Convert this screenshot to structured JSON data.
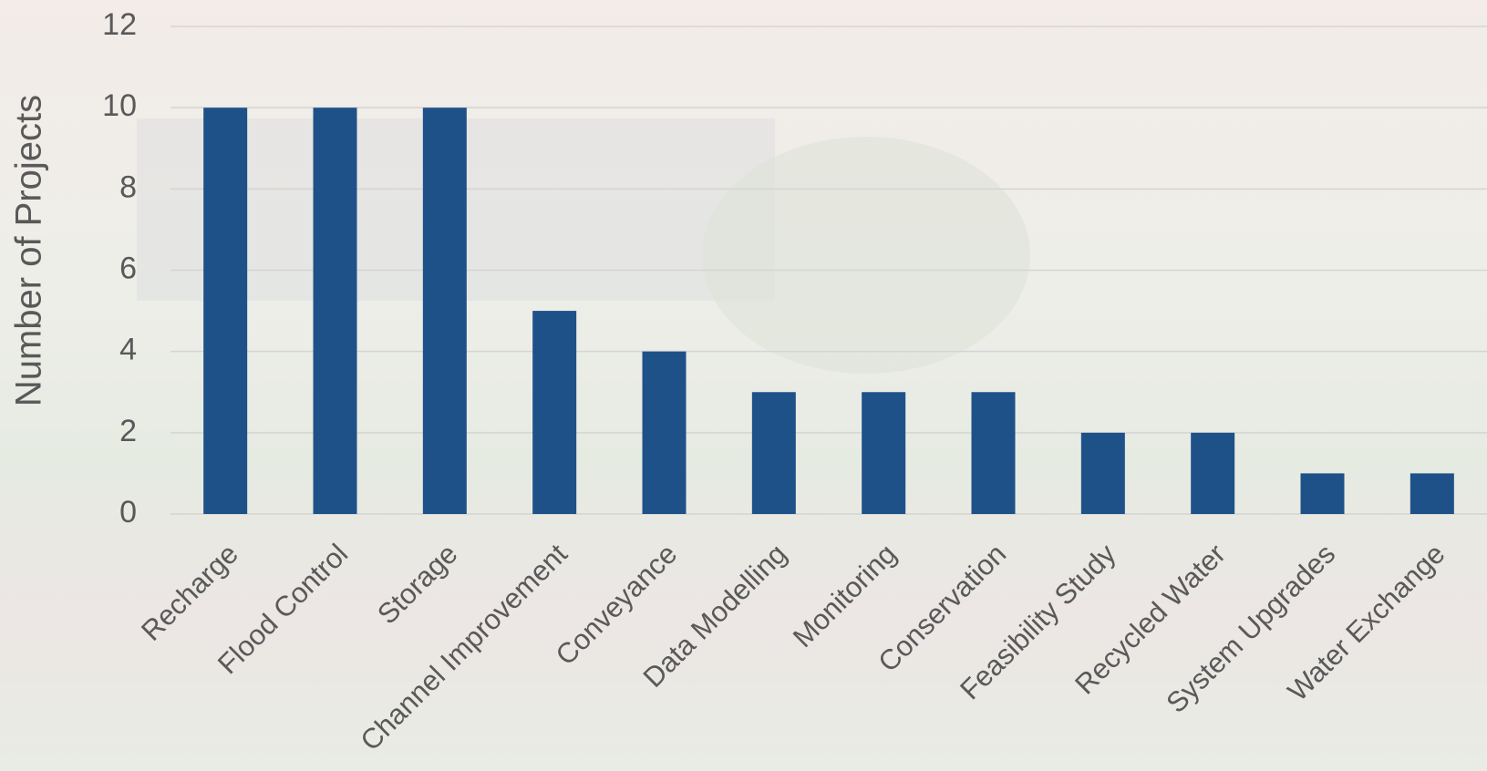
{
  "chart_data": {
    "type": "bar",
    "y_label": "Number of Projects",
    "categories": [
      "Recharge",
      "Flood Control",
      "Storage",
      "Channel Improvement",
      "Conveyance",
      "Data Modelling",
      "Monitoring",
      "Conservation",
      "Feasibility Study",
      "Recycled Water",
      "System Upgrades",
      "Water Exchange"
    ],
    "values": [
      10,
      10,
      10,
      5,
      4,
      3,
      3,
      3,
      2,
      2,
      1,
      1
    ],
    "color": "#1f5189",
    "ylim": [
      0,
      12
    ],
    "yticks": [
      0,
      2,
      4,
      6,
      8,
      10,
      12
    ],
    "grid": true
  }
}
